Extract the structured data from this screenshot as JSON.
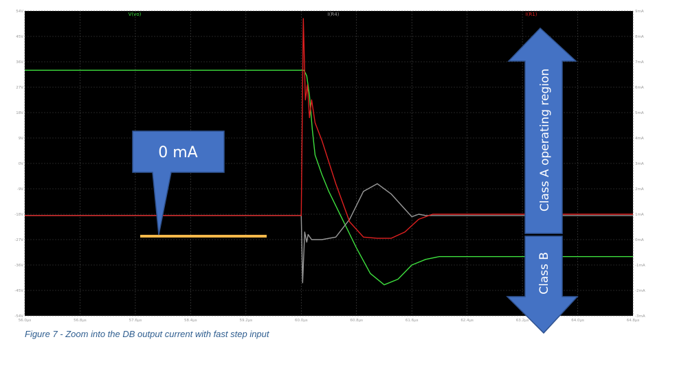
{
  "caption": "Figure 7 - Zoom into the DB output current with fast step input",
  "colors": {
    "plot_bg": "#000000",
    "grid": "#4a4a4a",
    "tick_text": "#9a9a9a",
    "vo": "#3ee03e",
    "ir4": "#9a9a9a",
    "ir1": "#e02020",
    "arrow_fill": "#4472c4",
    "arrow_stroke": "#2f528f",
    "marker": "#f4b84a"
  },
  "chart_data": {
    "type": "line",
    "x_ticks": [
      "56.0µs",
      "56.8µs",
      "57.6µs",
      "58.4µs",
      "59.2µs",
      "60.0µs",
      "60.8µs",
      "61.6µs",
      "62.4µs",
      "63.2µs",
      "64.0µs",
      "64.8µs"
    ],
    "y_left_ticks": [
      "54V",
      "45V",
      "36V",
      "27V",
      "18V",
      "9V",
      "0V",
      "-9V",
      "-18V",
      "-27V",
      "-36V",
      "-45V",
      "-54V"
    ],
    "y_right_ticks": [
      "9mA",
      "8mA",
      "7mA",
      "6mA",
      "5mA",
      "4mA",
      "3mA",
      "2mA",
      "1mA",
      "0mA",
      "-1mA",
      "-2mA",
      "-3mA"
    ],
    "xlim": [
      56.0,
      64.8
    ],
    "y_left_lim": [
      -54,
      54
    ],
    "y_right_lim": [
      -3,
      9
    ],
    "grid": true,
    "series": [
      {
        "name": "V(vo)",
        "axis": "left",
        "color_key": "vo",
        "x": [
          56.0,
          60.0,
          60.04,
          60.08,
          60.12,
          60.16,
          60.2,
          60.3,
          60.4,
          60.6,
          60.8,
          61.0,
          61.2,
          61.4,
          61.6,
          61.8,
          62.0,
          63.0,
          64.0,
          64.8
        ],
        "y": [
          33,
          33,
          33,
          31,
          24,
          12,
          3,
          -4,
          -10,
          -20,
          -30,
          -39,
          -43,
          -41,
          -36,
          -34,
          -33,
          -33,
          -33,
          -33
        ]
      },
      {
        "name": "I(R4)",
        "axis": "right",
        "color_key": "ir4",
        "x": [
          56.0,
          60.0,
          60.02,
          60.05,
          60.08,
          60.1,
          60.15,
          60.2,
          60.3,
          60.5,
          60.7,
          60.9,
          61.1,
          61.3,
          61.5,
          61.6,
          61.7,
          61.8,
          62.0,
          62.5,
          63.0,
          64.0,
          64.8
        ],
        "y": [
          0.95,
          0.95,
          -1.7,
          0.3,
          -0.1,
          0.2,
          0.0,
          0.0,
          0.0,
          0.1,
          0.8,
          1.9,
          2.2,
          1.8,
          1.2,
          0.9,
          1.0,
          0.95,
          0.95,
          0.95,
          0.95,
          0.95,
          0.95
        ]
      },
      {
        "name": "I(R1)",
        "axis": "right",
        "color_key": "ir1",
        "x": [
          56.0,
          60.0,
          60.03,
          60.06,
          60.09,
          60.12,
          60.15,
          60.2,
          60.3,
          60.5,
          60.7,
          60.9,
          61.1,
          61.3,
          61.5,
          61.7,
          61.9,
          62.0,
          62.5,
          63.0,
          64.0,
          64.8
        ],
        "y": [
          0.95,
          0.95,
          8.7,
          5.5,
          6.1,
          4.8,
          5.5,
          4.6,
          3.9,
          2.2,
          0.7,
          0.1,
          0.05,
          0.05,
          0.3,
          0.8,
          1.0,
          1.0,
          1.0,
          1.0,
          1.0,
          1.0
        ]
      }
    ]
  },
  "annotations": {
    "callout_text": "0 mA",
    "class_a_text": "Class A operating region",
    "class_b_text": "Class B"
  }
}
